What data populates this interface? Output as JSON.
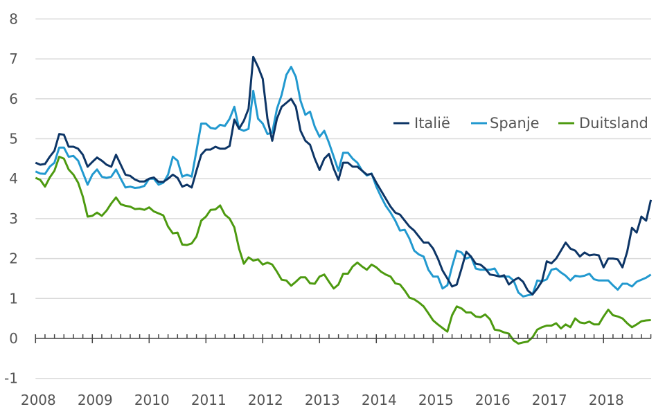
{
  "chart_data": {
    "type": "line",
    "title": "",
    "xlabel": "",
    "ylabel": "",
    "ylim": [
      -1,
      8
    ],
    "yticks": [
      "-1",
      "0",
      "1",
      "2",
      "3",
      "4",
      "5",
      "6",
      "7",
      "8"
    ],
    "xticks": [
      "2008",
      "2009",
      "2010",
      "2011",
      "2012",
      "2013",
      "2014",
      "2015",
      "2016",
      "2017",
      "2018"
    ],
    "x_start": "2008-01",
    "x_frequency": "monthly",
    "grid": true,
    "legend_position": "top-right",
    "series": [
      {
        "name": "Italië",
        "color": "#0d3566",
        "values": [
          4.4,
          4.35,
          4.37,
          4.55,
          4.7,
          5.12,
          5.1,
          4.8,
          4.8,
          4.75,
          4.6,
          4.3,
          4.42,
          4.53,
          4.45,
          4.35,
          4.3,
          4.6,
          4.35,
          4.1,
          4.07,
          3.98,
          3.93,
          3.93,
          4.0,
          4.03,
          3.92,
          3.92,
          4.0,
          4.1,
          4.02,
          3.8,
          3.85,
          3.78,
          4.2,
          4.6,
          4.73,
          4.73,
          4.8,
          4.75,
          4.75,
          4.82,
          5.48,
          5.25,
          5.45,
          5.75,
          7.05,
          6.8,
          6.5,
          5.5,
          4.95,
          5.5,
          5.8,
          5.9,
          6.0,
          5.8,
          5.2,
          4.95,
          4.85,
          4.5,
          4.22,
          4.5,
          4.62,
          4.25,
          3.97,
          4.4,
          4.4,
          4.3,
          4.3,
          4.2,
          4.1,
          4.12,
          3.9,
          3.7,
          3.5,
          3.3,
          3.15,
          3.1,
          2.95,
          2.8,
          2.7,
          2.55,
          2.4,
          2.4,
          2.25,
          2.0,
          1.7,
          1.5,
          1.3,
          1.35,
          1.75,
          2.17,
          2.05,
          1.87,
          1.85,
          1.75,
          1.6,
          1.58,
          1.55,
          1.58,
          1.35,
          1.45,
          1.52,
          1.42,
          1.2,
          1.1,
          1.25,
          1.43,
          1.93,
          1.88,
          2.0,
          2.2,
          2.4,
          2.25,
          2.2,
          2.05,
          2.15,
          2.08,
          2.1,
          2.08,
          1.78,
          2.0,
          2.0,
          1.98,
          1.78,
          2.17,
          2.77,
          2.65,
          3.05,
          2.95,
          3.47
        ]
      },
      {
        "name": "Spanje",
        "color": "#2299cf",
        "values": [
          4.18,
          4.13,
          4.12,
          4.3,
          4.4,
          4.78,
          4.78,
          4.55,
          4.57,
          4.45,
          4.15,
          3.85,
          4.1,
          4.23,
          4.05,
          4.02,
          4.05,
          4.23,
          4.0,
          3.78,
          3.8,
          3.77,
          3.78,
          3.82,
          4.0,
          4.0,
          3.85,
          3.9,
          4.1,
          4.55,
          4.45,
          4.05,
          4.1,
          4.05,
          4.7,
          5.38,
          5.38,
          5.27,
          5.25,
          5.35,
          5.32,
          5.5,
          5.8,
          5.25,
          5.2,
          5.25,
          6.2,
          5.5,
          5.38,
          5.12,
          5.15,
          5.75,
          6.1,
          6.6,
          6.8,
          6.55,
          5.95,
          5.6,
          5.68,
          5.3,
          5.05,
          5.2,
          4.9,
          4.55,
          4.2,
          4.65,
          4.65,
          4.5,
          4.4,
          4.2,
          4.08,
          4.13,
          3.8,
          3.55,
          3.32,
          3.15,
          2.95,
          2.7,
          2.72,
          2.5,
          2.2,
          2.1,
          2.05,
          1.72,
          1.55,
          1.55,
          1.25,
          1.33,
          1.8,
          2.2,
          2.15,
          2.0,
          2.05,
          1.75,
          1.72,
          1.72,
          1.72,
          1.75,
          1.55,
          1.55,
          1.55,
          1.45,
          1.15,
          1.05,
          1.08,
          1.1,
          1.45,
          1.43,
          1.48,
          1.72,
          1.75,
          1.65,
          1.57,
          1.45,
          1.57,
          1.55,
          1.57,
          1.62,
          1.48,
          1.45,
          1.45,
          1.45,
          1.33,
          1.22,
          1.37,
          1.37,
          1.3,
          1.42,
          1.47,
          1.52,
          1.6
        ]
      },
      {
        "name": "Duitsland",
        "color": "#4d9a10",
        "values": [
          4.02,
          3.97,
          3.8,
          4.03,
          4.2,
          4.55,
          4.5,
          4.23,
          4.1,
          3.9,
          3.55,
          3.05,
          3.07,
          3.15,
          3.07,
          3.2,
          3.38,
          3.53,
          3.36,
          3.32,
          3.3,
          3.24,
          3.25,
          3.22,
          3.28,
          3.18,
          3.13,
          3.08,
          2.8,
          2.63,
          2.65,
          2.35,
          2.34,
          2.38,
          2.55,
          2.95,
          3.05,
          3.22,
          3.23,
          3.33,
          3.1,
          3.0,
          2.78,
          2.25,
          1.87,
          2.03,
          1.95,
          1.98,
          1.85,
          1.9,
          1.85,
          1.67,
          1.47,
          1.45,
          1.32,
          1.42,
          1.53,
          1.53,
          1.38,
          1.37,
          1.55,
          1.6,
          1.42,
          1.25,
          1.35,
          1.62,
          1.62,
          1.8,
          1.9,
          1.8,
          1.72,
          1.85,
          1.78,
          1.67,
          1.6,
          1.55,
          1.38,
          1.35,
          1.2,
          1.02,
          0.98,
          0.9,
          0.8,
          0.63,
          0.45,
          0.35,
          0.26,
          0.17,
          0.58,
          0.8,
          0.75,
          0.65,
          0.65,
          0.55,
          0.53,
          0.6,
          0.48,
          0.22,
          0.2,
          0.15,
          0.12,
          -0.05,
          -0.13,
          -0.1,
          -0.08,
          0.03,
          0.22,
          0.28,
          0.32,
          0.32,
          0.38,
          0.25,
          0.35,
          0.28,
          0.5,
          0.4,
          0.38,
          0.42,
          0.35,
          0.35,
          0.55,
          0.72,
          0.58,
          0.55,
          0.5,
          0.38,
          0.28,
          0.35,
          0.43,
          0.45,
          0.46
        ]
      }
    ]
  }
}
